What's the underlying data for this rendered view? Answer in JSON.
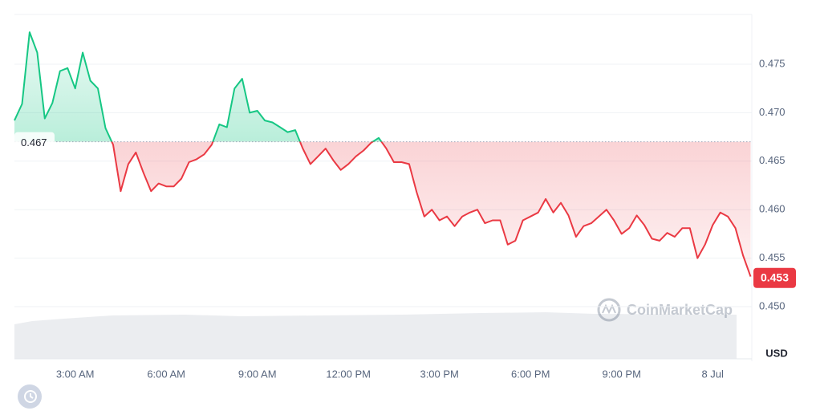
{
  "chart_data": {
    "type": "line",
    "categories": [
      null,
      null,
      null,
      null,
      null,
      null,
      null,
      null,
      "3:00 AM",
      null,
      null,
      null,
      null,
      null,
      null,
      null,
      null,
      null,
      null,
      null,
      "6:00 AM",
      null,
      null,
      null,
      null,
      null,
      null,
      null,
      null,
      null,
      null,
      null,
      "9:00 AM",
      null,
      null,
      null,
      null,
      null,
      null,
      null,
      null,
      null,
      null,
      null,
      "12:00 PM",
      null,
      null,
      null,
      null,
      null,
      null,
      null,
      null,
      null,
      null,
      null,
      "3:00 PM",
      null,
      null,
      null,
      null,
      null,
      null,
      null,
      null,
      null,
      null,
      null,
      "6:00 PM",
      null,
      null,
      null,
      null,
      null,
      null,
      null,
      null,
      null,
      null,
      null,
      "9:00 PM",
      null,
      null,
      null,
      null,
      null,
      null,
      null,
      null,
      null,
      null,
      null,
      "8 Jul",
      null,
      null,
      null,
      null,
      null
    ],
    "values": [
      0.4692,
      0.4709,
      0.4783,
      0.4762,
      0.4694,
      0.471,
      0.4743,
      0.4746,
      0.4725,
      0.4762,
      0.4733,
      0.4725,
      0.4684,
      0.4667,
      0.4619,
      0.4647,
      0.4659,
      0.4638,
      0.4619,
      0.4627,
      0.4624,
      0.4624,
      0.4632,
      0.4649,
      0.4652,
      0.4657,
      0.4667,
      0.4688,
      0.4685,
      0.4725,
      0.4735,
      0.47,
      0.4702,
      0.4692,
      0.469,
      0.4685,
      0.468,
      0.4682,
      0.4663,
      0.4647,
      0.4655,
      0.4663,
      0.4651,
      0.4641,
      0.4647,
      0.4655,
      0.4661,
      0.4669,
      0.4674,
      0.4663,
      0.4649,
      0.4649,
      0.4647,
      0.4618,
      0.4593,
      0.46,
      0.4589,
      0.4593,
      0.4583,
      0.4593,
      0.4597,
      0.46,
      0.4586,
      0.4589,
      0.4589,
      0.4564,
      0.4568,
      0.4589,
      0.4593,
      0.4597,
      0.4611,
      0.4597,
      0.4607,
      0.4594,
      0.4572,
      0.4583,
      0.4586,
      0.4593,
      0.46,
      0.4589,
      0.4575,
      0.4581,
      0.4594,
      0.4584,
      0.457,
      0.4568,
      0.4576,
      0.4572,
      0.4581,
      0.4581,
      0.455,
      0.4564,
      0.4584,
      0.4597,
      0.4593,
      0.4581,
      0.4553,
      0.4531
    ],
    "baseline": 0.467,
    "current_price": 0.453,
    "up_color": "#16c784",
    "down_color": "#ea3943",
    "ylim": [
      0.45,
      0.48
    ],
    "yticks": [
      {
        "value": 0.45,
        "label": "0.450"
      },
      0.455,
      {
        "value": 0.46,
        "label": "0.460"
      },
      0.465,
      {
        "value": 0.47,
        "label": "0.470"
      },
      0.475
    ],
    "grid": true,
    "currency": "USD",
    "watermark": "CoinMarketCap"
  }
}
